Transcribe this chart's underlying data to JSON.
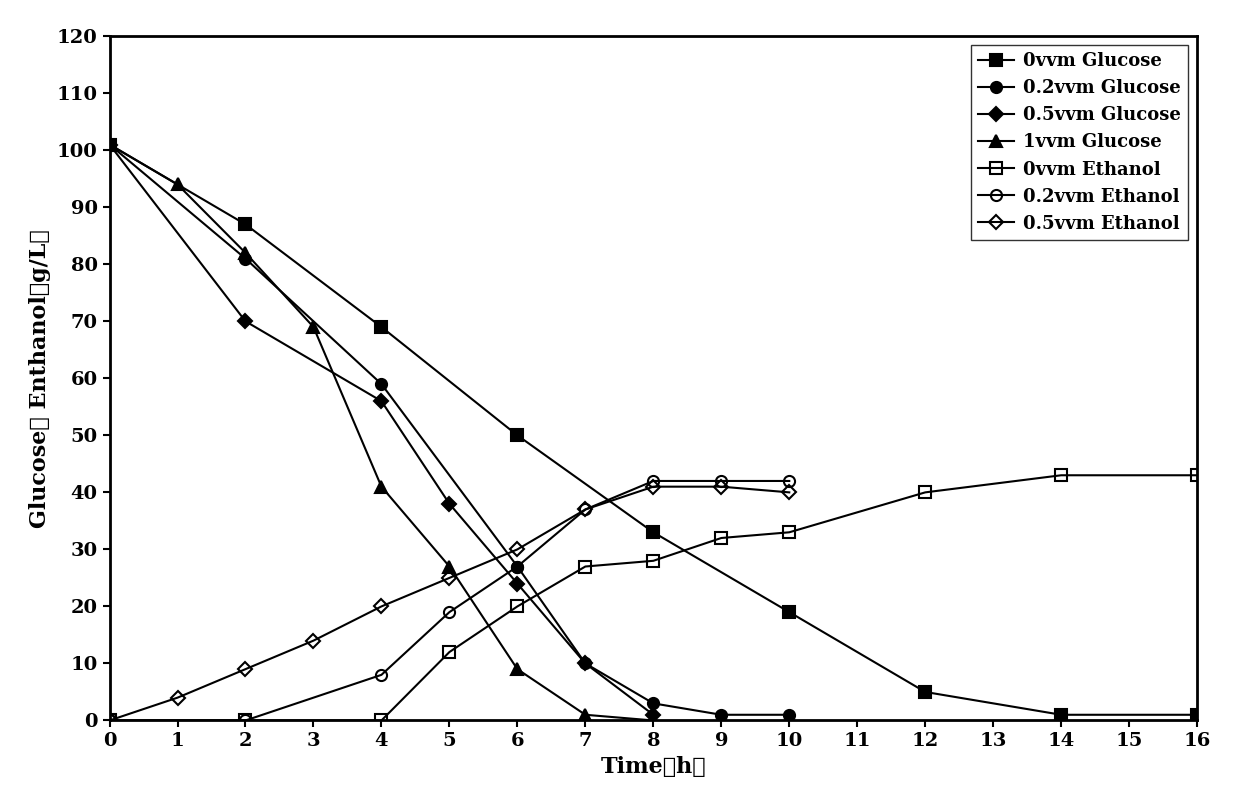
{
  "title": "",
  "xlabel": "Time（h）",
  "ylabel": "Glucose， Enthanol（g/L）",
  "xlabel_plain": "Time (h)",
  "ylabel_plain": "Glucose， Enthanol (g/L)",
  "xlim": [
    0,
    16
  ],
  "ylim": [
    0,
    120
  ],
  "yticks": [
    0,
    10,
    20,
    30,
    40,
    50,
    60,
    70,
    80,
    90,
    100,
    110,
    120
  ],
  "xticks": [
    0,
    1,
    2,
    3,
    4,
    5,
    6,
    7,
    8,
    9,
    10,
    11,
    12,
    13,
    14,
    15,
    16
  ],
  "series": [
    {
      "label": "0vvm Glucose",
      "x": [
        0,
        2,
        4,
        6,
        8,
        10,
        12,
        14,
        16
      ],
      "y": [
        101,
        87,
        69,
        50,
        33,
        19,
        5,
        1,
        1
      ],
      "color": "black",
      "marker": "s",
      "fillstyle": "full",
      "linestyle": "-",
      "markersize": 8
    },
    {
      "label": "0.2vvm Glucose",
      "x": [
        0,
        2,
        4,
        6,
        7,
        8,
        9,
        10
      ],
      "y": [
        101,
        81,
        59,
        27,
        10,
        3,
        1,
        1
      ],
      "color": "black",
      "marker": "o",
      "fillstyle": "full",
      "linestyle": "-",
      "markersize": 8
    },
    {
      "label": "0.5vvm Glucose",
      "x": [
        0,
        2,
        4,
        5,
        6,
        7,
        8
      ],
      "y": [
        101,
        70,
        56,
        38,
        24,
        10,
        1
      ],
      "color": "black",
      "marker": "D",
      "fillstyle": "full",
      "linestyle": "-",
      "markersize": 7
    },
    {
      "label": "1vvm Glucose",
      "x": [
        0,
        1,
        2,
        3,
        4,
        5,
        6,
        7,
        8
      ],
      "y": [
        101,
        94,
        82,
        69,
        41,
        27,
        9,
        1,
        0
      ],
      "color": "black",
      "marker": "^",
      "fillstyle": "full",
      "linestyle": "-",
      "markersize": 8
    },
    {
      "label": "0vvm Ethanol",
      "x": [
        0,
        2,
        4,
        5,
        6,
        7,
        8,
        9,
        10,
        12,
        14,
        16
      ],
      "y": [
        0,
        0,
        0,
        12,
        20,
        27,
        28,
        32,
        33,
        40,
        43,
        43
      ],
      "color": "black",
      "marker": "s",
      "fillstyle": "none",
      "linestyle": "-",
      "markersize": 8
    },
    {
      "label": "0.2vvm Ethanol",
      "x": [
        0,
        2,
        4,
        5,
        6,
        7,
        8,
        9,
        10
      ],
      "y": [
        0,
        0,
        8,
        19,
        27,
        37,
        42,
        42,
        42
      ],
      "color": "black",
      "marker": "o",
      "fillstyle": "none",
      "linestyle": "-",
      "markersize": 8
    },
    {
      "label": "0.5vvm Ethanol",
      "x": [
        0,
        1,
        2,
        3,
        4,
        5,
        6,
        7,
        8,
        9,
        10
      ],
      "y": [
        0,
        4,
        9,
        14,
        20,
        25,
        30,
        37,
        41,
        41,
        40
      ],
      "color": "black",
      "marker": "D",
      "fillstyle": "none",
      "linestyle": "-",
      "markersize": 7
    }
  ],
  "legend_loc": "upper right",
  "background_color": "white",
  "font_size": 14
}
